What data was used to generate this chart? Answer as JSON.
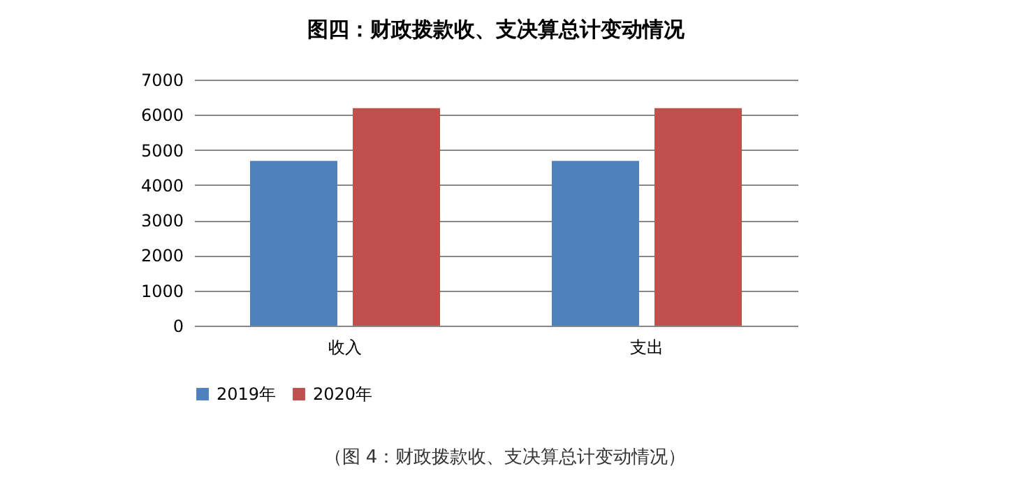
{
  "chart_data": {
    "type": "bar",
    "title": "图四：财政拨款收、支决算总计变动情况",
    "categories": [
      "收入",
      "支出"
    ],
    "series": [
      {
        "name": "2019年",
        "color": "#4f81bd",
        "values": [
          4690,
          4690
        ]
      },
      {
        "name": "2020年",
        "color": "#c0504d",
        "values": [
          6190,
          6190
        ]
      }
    ],
    "ylim": [
      0,
      7000
    ],
    "yticks": [
      0,
      1000,
      2000,
      3000,
      4000,
      5000,
      6000,
      7000
    ],
    "grid": "y",
    "legend": "bottom",
    "annotations": [
      "（图 4：财政拨款收、支决算总计变动情况）"
    ]
  }
}
